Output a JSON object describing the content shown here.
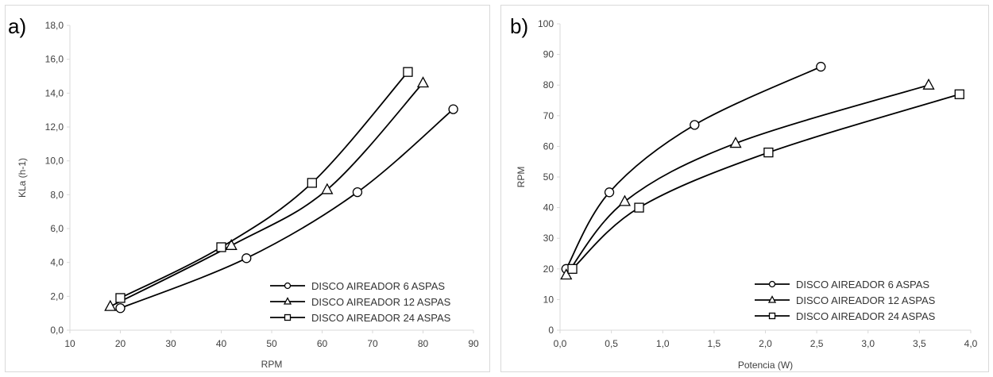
{
  "chart_data": [
    {
      "type": "line",
      "panel": "a)",
      "xlabel": "RPM",
      "ylabel": "KLa (h-1)",
      "xlim": [
        10,
        90
      ],
      "ylim": [
        0,
        18
      ],
      "xticks": [
        "10",
        "20",
        "30",
        "40",
        "50",
        "60",
        "70",
        "80",
        "90"
      ],
      "yticks": [
        "0,0",
        "2,0",
        "4,0",
        "6,0",
        "8,0",
        "10,0",
        "12,0",
        "14,0",
        "16,0",
        "18,0"
      ],
      "x_tick_values": [
        10,
        20,
        30,
        40,
        50,
        60,
        70,
        80,
        90
      ],
      "y_tick_values": [
        0,
        2,
        4,
        6,
        8,
        10,
        12,
        14,
        16,
        18
      ],
      "grid": false,
      "legend_position": "bottom-right",
      "series": [
        {
          "name": "DISCO AIREADOR 6 ASPAS",
          "marker": "circle",
          "x": [
            20,
            45,
            67,
            86
          ],
          "y": [
            1.3,
            4.25,
            8.15,
            13.05
          ]
        },
        {
          "name": "DISCO AIREADOR 12 ASPAS",
          "marker": "triangle",
          "x": [
            18,
            42,
            61,
            80
          ],
          "y": [
            1.4,
            5.0,
            8.3,
            14.6
          ]
        },
        {
          "name": "DISCO AIREADOR 24 ASPAS",
          "marker": "square",
          "x": [
            20,
            40,
            58,
            77
          ],
          "y": [
            1.9,
            4.9,
            8.7,
            15.25
          ]
        }
      ]
    },
    {
      "type": "line",
      "panel": "b)",
      "xlabel": "Potencia  (W)",
      "ylabel": "RPM",
      "xlim": [
        0,
        4
      ],
      "ylim": [
        0,
        100
      ],
      "xticks": [
        "0,0",
        "0,5",
        "1,0",
        "1,5",
        "2,0",
        "2,5",
        "3,0",
        "3,5",
        "4,0"
      ],
      "yticks": [
        "0",
        "10",
        "20",
        "30",
        "40",
        "50",
        "60",
        "70",
        "80",
        "90",
        "100"
      ],
      "x_tick_values": [
        0,
        0.5,
        1.0,
        1.5,
        2.0,
        2.5,
        3.0,
        3.5,
        4.0
      ],
      "y_tick_values": [
        0,
        10,
        20,
        30,
        40,
        50,
        60,
        70,
        80,
        90,
        100
      ],
      "grid": false,
      "legend_position": "bottom-right",
      "series": [
        {
          "name": "DISCO AIREADOR 6 ASPAS",
          "marker": "circle",
          "x": [
            0.06,
            0.48,
            1.31,
            2.54
          ],
          "y": [
            20,
            45,
            67,
            86
          ]
        },
        {
          "name": "DISCO AIREADOR 12 ASPAS",
          "marker": "triangle",
          "x": [
            0.06,
            0.63,
            1.71,
            3.59
          ],
          "y": [
            18,
            42,
            61,
            80
          ]
        },
        {
          "name": "DISCO AIREADOR 24 ASPAS",
          "marker": "square",
          "x": [
            0.12,
            0.77,
            2.03,
            3.89
          ],
          "y": [
            20,
            40,
            58,
            77
          ]
        }
      ]
    }
  ]
}
